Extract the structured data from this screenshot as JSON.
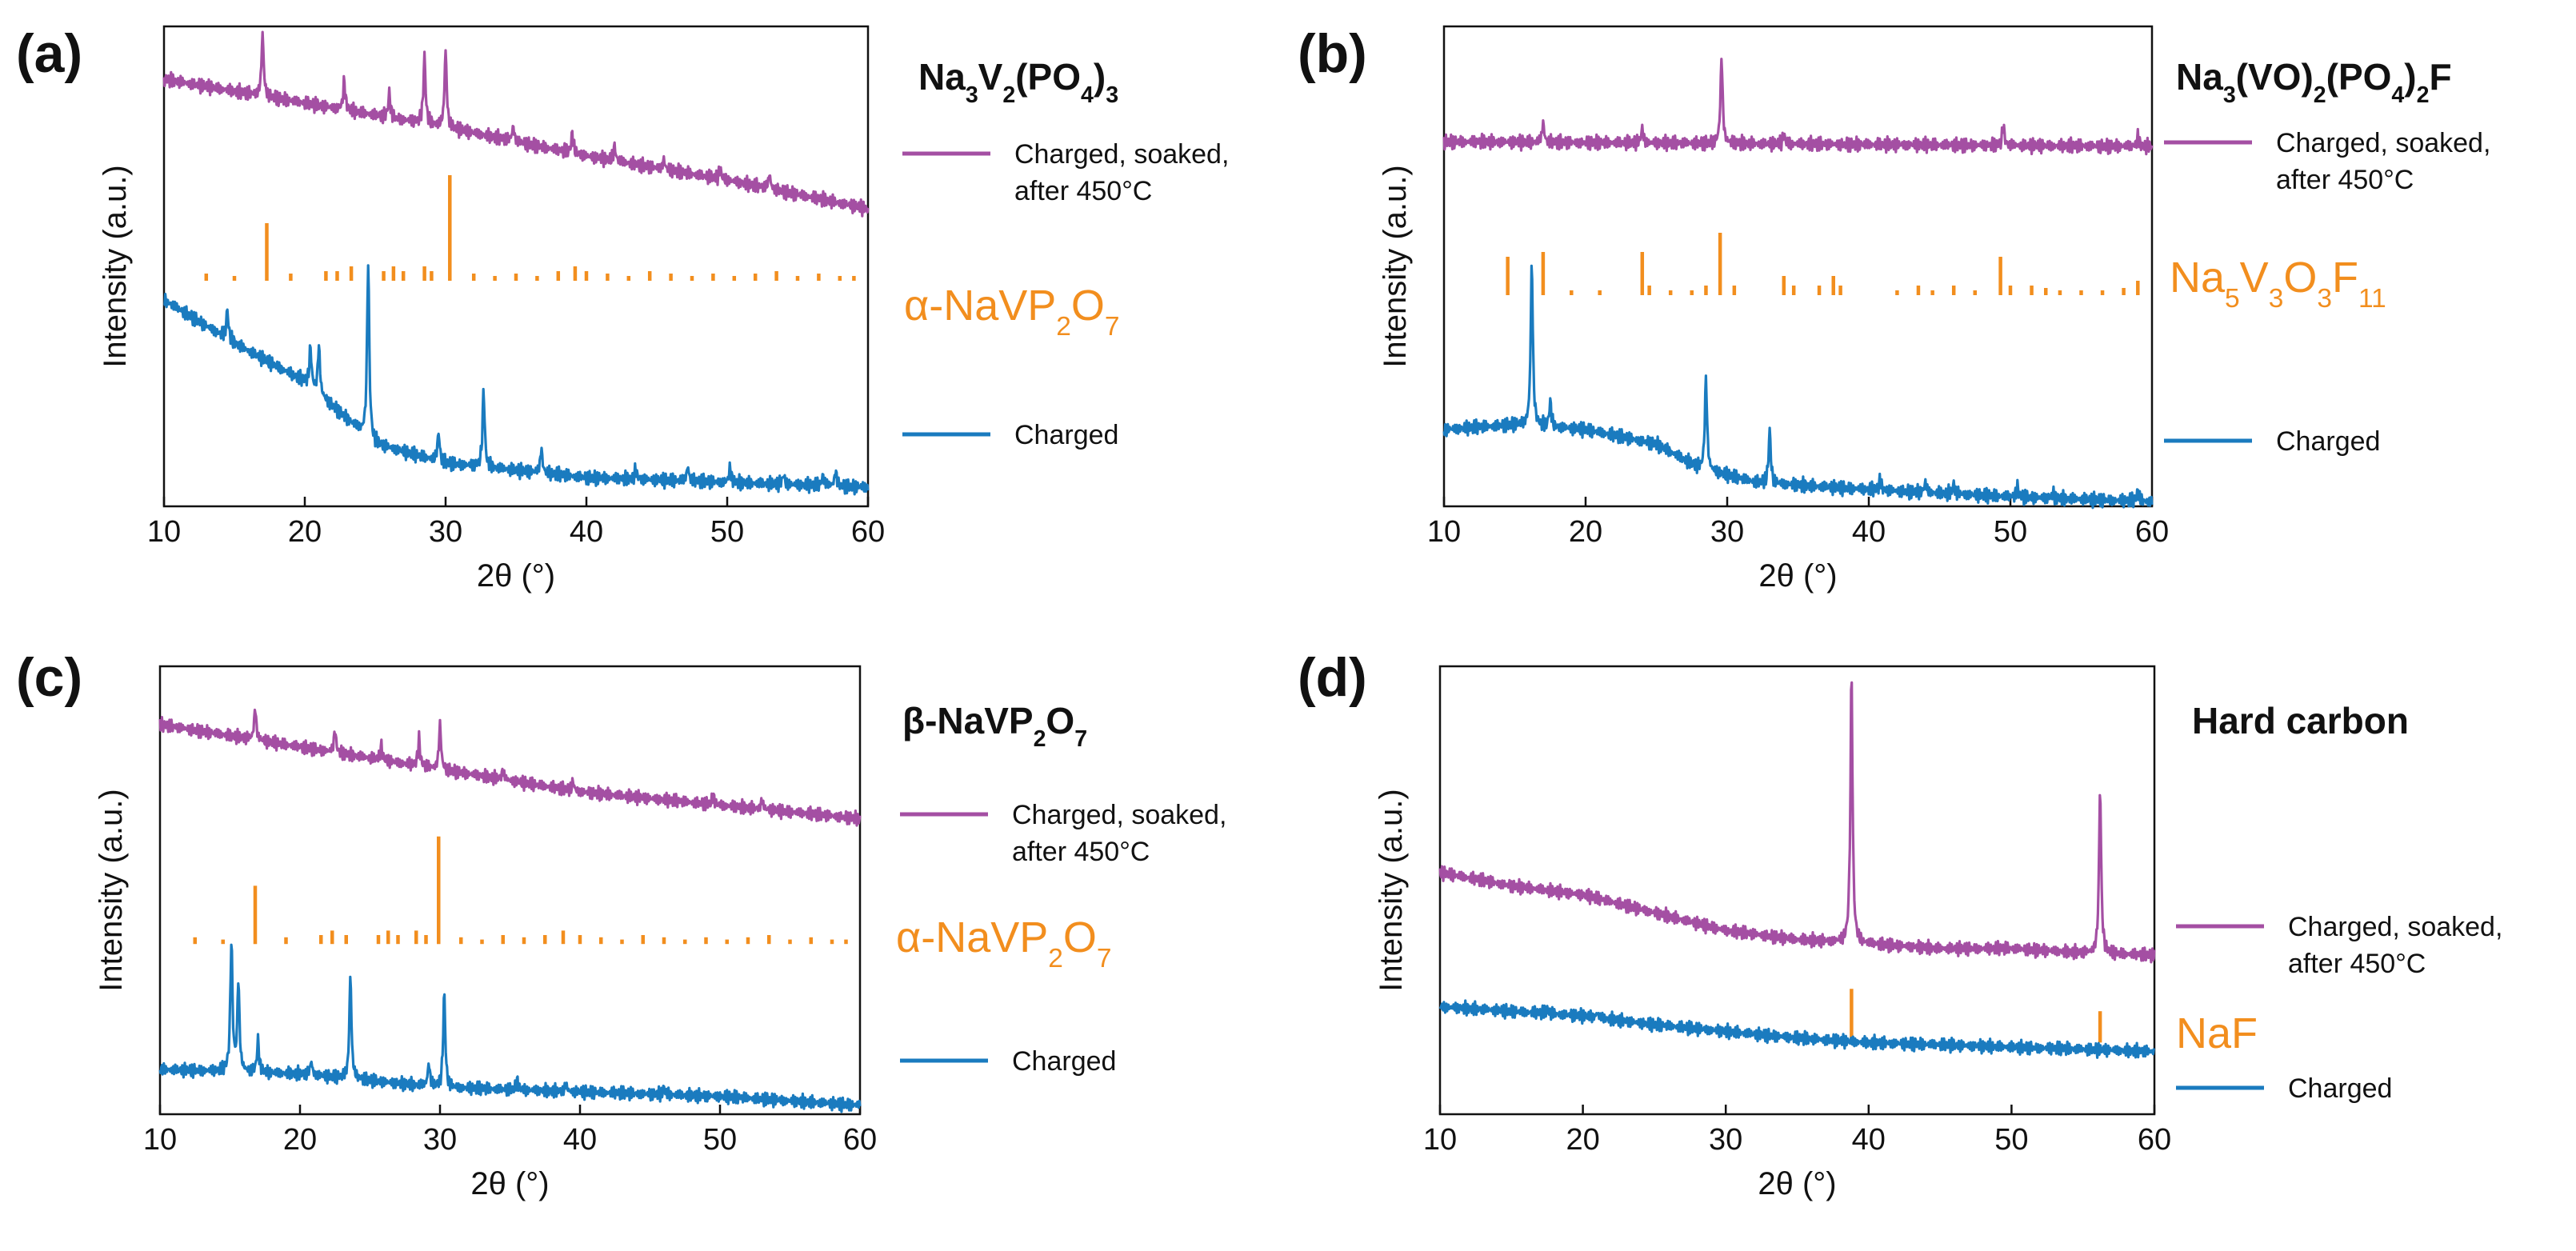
{
  "colors": {
    "soaked": "#a44fa3",
    "reference": "#f28e1e",
    "charged": "#1a7bbf",
    "axis": "#111111"
  },
  "chart_data": [
    {
      "type": "line",
      "panel_label": "(a)",
      "material_title": {
        "pre": "Na",
        "s1": "3",
        "m1": "V",
        "s2": "2",
        "m2": "(PO",
        "s3": "4",
        "m3": ")",
        "s4": "3"
      },
      "xlabel": "2θ (°)",
      "ylabel": "Intensity (a.u.)",
      "xlim": [
        10,
        60
      ],
      "xticks": [
        "10",
        "20",
        "30",
        "40",
        "50",
        "60"
      ],
      "series": [
        {
          "name": "Charged, soaked, after 450°C",
          "legend": [
            "Charged, soaked,",
            "after 450°C"
          ],
          "baseline": [
            [
              10,
              0.89
            ],
            [
              20,
              0.84
            ],
            [
              30,
              0.79
            ],
            [
              40,
              0.73
            ],
            [
              50,
              0.68
            ],
            [
              60,
              0.62
            ]
          ],
          "peaks": [
            [
              17.0,
              0.13
            ],
            [
              22.8,
              0.06
            ],
            [
              26.0,
              0.05
            ],
            [
              28.5,
              0.14
            ],
            [
              30.0,
              0.16
            ],
            [
              34.8,
              0.03
            ],
            [
              39.0,
              0.04
            ],
            [
              42.0,
              0.03
            ],
            [
              45.5,
              0.02
            ],
            [
              49.5,
              0.02
            ],
            [
              53.0,
              0.03
            ]
          ]
        },
        {
          "name": "Charged",
          "legend": [
            "Charged"
          ],
          "baseline": [
            [
              10,
              0.43
            ],
            [
              15,
              0.34
            ],
            [
              20,
              0.26
            ],
            [
              25,
              0.13
            ],
            [
              30,
              0.09
            ],
            [
              40,
              0.06
            ],
            [
              50,
              0.05
            ],
            [
              60,
              0.04
            ]
          ],
          "peaks": [
            [
              14.5,
              0.06
            ],
            [
              20.4,
              0.08
            ],
            [
              21.0,
              0.1
            ],
            [
              24.5,
              0.37
            ],
            [
              29.5,
              0.06
            ],
            [
              32.7,
              0.16
            ],
            [
              36.8,
              0.05
            ],
            [
              43.5,
              0.02
            ],
            [
              47.2,
              0.03
            ],
            [
              50.2,
              0.03
            ],
            [
              54.0,
              0.02
            ],
            [
              56.8,
              0.02
            ],
            [
              57.7,
              0.03
            ]
          ]
        }
      ],
      "reference": {
        "name": "α-NaVP2O7",
        "label": {
          "pre": "α-NaVP",
          "s1": "2",
          "m1": "O",
          "s2": "7"
        },
        "baseline": 0.47,
        "sticks": [
          [
            13.0,
            0.015
          ],
          [
            15.0,
            0.01
          ],
          [
            17.3,
            0.12
          ],
          [
            19.0,
            0.015
          ],
          [
            21.5,
            0.02
          ],
          [
            22.3,
            0.02
          ],
          [
            23.3,
            0.03
          ],
          [
            25.6,
            0.02
          ],
          [
            26.3,
            0.03
          ],
          [
            27.0,
            0.02
          ],
          [
            28.5,
            0.03
          ],
          [
            29.0,
            0.02
          ],
          [
            30.3,
            0.22
          ],
          [
            32.0,
            0.015
          ],
          [
            33.5,
            0.01
          ],
          [
            35.0,
            0.015
          ],
          [
            36.5,
            0.01
          ],
          [
            38.0,
            0.02
          ],
          [
            39.2,
            0.03
          ],
          [
            40.0,
            0.02
          ],
          [
            41.5,
            0.015
          ],
          [
            43.0,
            0.01
          ],
          [
            44.5,
            0.02
          ],
          [
            46.0,
            0.015
          ],
          [
            47.5,
            0.01
          ],
          [
            49.0,
            0.015
          ],
          [
            50.5,
            0.01
          ],
          [
            52.0,
            0.015
          ],
          [
            53.5,
            0.02
          ],
          [
            55.0,
            0.01
          ],
          [
            56.5,
            0.015
          ],
          [
            58.0,
            0.01
          ],
          [
            59.0,
            0.01
          ]
        ]
      }
    },
    {
      "type": "line",
      "panel_label": "(b)",
      "material_title": {
        "pre": "Na",
        "s1": "3",
        "m1": "(VO)",
        "s2": "2",
        "m2": "(PO",
        "s3": "4",
        "m3": ")",
        "s4": "2",
        "m4": "F"
      },
      "xlabel": "2θ (°)",
      "ylabel": "Intensity (a.u.)",
      "xlim": [
        10,
        60
      ],
      "xticks": [
        "10",
        "20",
        "30",
        "40",
        "50",
        "60"
      ],
      "series": [
        {
          "name": "Charged, soaked, after 450°C",
          "legend": [
            "Charged, soaked,",
            "after 450°C"
          ],
          "baseline": [
            [
              10,
              0.76
            ],
            [
              60,
              0.75
            ]
          ],
          "peaks": [
            [
              17.0,
              0.04
            ],
            [
              24.0,
              0.03
            ],
            [
              29.6,
              0.18
            ],
            [
              34.0,
              0.02
            ],
            [
              49.5,
              0.04
            ],
            [
              59.0,
              0.02
            ]
          ]
        },
        {
          "name": "Charged",
          "legend": [
            "Charged"
          ],
          "baseline": [
            [
              10,
              0.16
            ],
            [
              15,
              0.17
            ],
            [
              20,
              0.16
            ],
            [
              25,
              0.13
            ],
            [
              28,
              0.08
            ],
            [
              32,
              0.05
            ],
            [
              40,
              0.035
            ],
            [
              50,
              0.02
            ],
            [
              60,
              0.01
            ]
          ],
          "peaks": [
            [
              16.2,
              0.34
            ],
            [
              17.5,
              0.05
            ],
            [
              28.5,
              0.19
            ],
            [
              33.0,
              0.11
            ],
            [
              40.8,
              0.02
            ],
            [
              44.0,
              0.02
            ],
            [
              46.0,
              0.02
            ],
            [
              50.5,
              0.02
            ],
            [
              53.0,
              0.01
            ],
            [
              59.0,
              0.02
            ]
          ]
        }
      ],
      "reference": {
        "name": "Na5V3O3F11",
        "label": {
          "pre": "Na",
          "s1": "5",
          "m1": "V",
          "s2": "3",
          "m2": "O",
          "s3": "3",
          "m3": "F",
          "s4": "11"
        },
        "baseline": 0.44,
        "sticks": [
          [
            14.5,
            0.08
          ],
          [
            17.0,
            0.09
          ],
          [
            19.0,
            0.01
          ],
          [
            21.0,
            0.01
          ],
          [
            24.0,
            0.09
          ],
          [
            24.5,
            0.02
          ],
          [
            26.0,
            0.01
          ],
          [
            27.5,
            0.01
          ],
          [
            28.5,
            0.02
          ],
          [
            29.5,
            0.13
          ],
          [
            30.5,
            0.02
          ],
          [
            34.0,
            0.04
          ],
          [
            34.7,
            0.02
          ],
          [
            36.5,
            0.02
          ],
          [
            37.5,
            0.04
          ],
          [
            38.0,
            0.02
          ],
          [
            42.0,
            0.01
          ],
          [
            43.5,
            0.02
          ],
          [
            44.5,
            0.01
          ],
          [
            46.0,
            0.02
          ],
          [
            47.5,
            0.01
          ],
          [
            49.3,
            0.08
          ],
          [
            50.0,
            0.02
          ],
          [
            51.5,
            0.02
          ],
          [
            52.5,
            0.015
          ],
          [
            53.5,
            0.01
          ],
          [
            55.0,
            0.01
          ],
          [
            56.5,
            0.01
          ],
          [
            58.0,
            0.015
          ],
          [
            59.0,
            0.03
          ]
        ]
      }
    },
    {
      "type": "line",
      "panel_label": "(c)",
      "material_title": {
        "pre": "β-NaVP",
        "s1": "2",
        "m1": "O",
        "s2": "7"
      },
      "xlabel": "2θ (°)",
      "ylabel": "Intensity (a.u.)",
      "xlim": [
        10,
        60
      ],
      "xticks": [
        "10",
        "20",
        "30",
        "40",
        "50",
        "60"
      ],
      "series": [
        {
          "name": "Charged, soaked, after 450°C",
          "legend": [
            "Charged, soaked,",
            "after 450°C"
          ],
          "baseline": [
            [
              10,
              0.87
            ],
            [
              20,
              0.82
            ],
            [
              30,
              0.77
            ],
            [
              40,
              0.72
            ],
            [
              50,
              0.69
            ],
            [
              60,
              0.66
            ]
          ],
          "peaks": [
            [
              16.8,
              0.07
            ],
            [
              22.5,
              0.05
            ],
            [
              25.8,
              0.03
            ],
            [
              28.5,
              0.06
            ],
            [
              30.0,
              0.1
            ],
            [
              34.5,
              0.02
            ],
            [
              39.5,
              0.02
            ],
            [
              49.5,
              0.02
            ],
            [
              53.0,
              0.02
            ]
          ]
        },
        {
          "name": "Charged",
          "legend": [
            "Charged"
          ],
          "baseline": [
            [
              10,
              0.1
            ],
            [
              20,
              0.09
            ],
            [
              30,
              0.06
            ],
            [
              40,
              0.05
            ],
            [
              50,
              0.04
            ],
            [
              60,
              0.02
            ]
          ],
          "peaks": [
            [
              15.1,
              0.29
            ],
            [
              15.6,
              0.2
            ],
            [
              17.0,
              0.07
            ],
            [
              20.8,
              0.03
            ],
            [
              23.6,
              0.23
            ],
            [
              29.2,
              0.05
            ],
            [
              30.3,
              0.21
            ],
            [
              35.5,
              0.02
            ],
            [
              39.0,
              0.015
            ],
            [
              46.0,
              0.015
            ]
          ]
        }
      ],
      "reference": {
        "name": "α-NaVP2O7",
        "label": {
          "pre": "α-NaVP",
          "s1": "2",
          "m1": "O",
          "s2": "7"
        },
        "baseline": 0.38,
        "sticks": [
          [
            12.5,
            0.015
          ],
          [
            14.5,
            0.01
          ],
          [
            16.8,
            0.13
          ],
          [
            19.0,
            0.015
          ],
          [
            21.5,
            0.02
          ],
          [
            22.3,
            0.03
          ],
          [
            23.3,
            0.02
          ],
          [
            25.6,
            0.02
          ],
          [
            26.3,
            0.03
          ],
          [
            27.0,
            0.02
          ],
          [
            28.3,
            0.03
          ],
          [
            29.0,
            0.02
          ],
          [
            29.9,
            0.24
          ],
          [
            31.5,
            0.015
          ],
          [
            33.0,
            0.01
          ],
          [
            34.5,
            0.02
          ],
          [
            36.0,
            0.015
          ],
          [
            37.5,
            0.02
          ],
          [
            38.8,
            0.03
          ],
          [
            40.0,
            0.02
          ],
          [
            41.5,
            0.015
          ],
          [
            43.0,
            0.01
          ],
          [
            44.5,
            0.02
          ],
          [
            46.0,
            0.015
          ],
          [
            47.5,
            0.01
          ],
          [
            49.0,
            0.015
          ],
          [
            50.5,
            0.01
          ],
          [
            52.0,
            0.015
          ],
          [
            53.5,
            0.02
          ],
          [
            55.0,
            0.01
          ],
          [
            56.5,
            0.015
          ],
          [
            58.0,
            0.01
          ],
          [
            59.0,
            0.01
          ]
        ]
      }
    },
    {
      "type": "line",
      "panel_label": "(d)",
      "material_title": {
        "pre": "Hard carbon"
      },
      "xlabel": "2θ (°)",
      "ylabel": "Intensity (a.u.)",
      "xlim": [
        10,
        60
      ],
      "xticks": [
        "10",
        "20",
        "30",
        "40",
        "50",
        "60"
      ],
      "series": [
        {
          "name": "Charged, soaked, after 450°C",
          "legend": [
            "Charged, soaked,",
            "after 450°C"
          ],
          "baseline": [
            [
              10,
              0.54
            ],
            [
              15,
              0.51
            ],
            [
              20,
              0.49
            ],
            [
              25,
              0.45
            ],
            [
              30,
              0.41
            ],
            [
              35,
              0.39
            ],
            [
              40,
              0.38
            ],
            [
              45,
              0.37
            ],
            [
              50,
              0.37
            ],
            [
              55,
              0.36
            ],
            [
              60,
              0.355
            ]
          ],
          "peaks": [
            [
              38.8,
              0.6
            ],
            [
              56.2,
              0.37
            ]
          ]
        },
        {
          "name": "Charged",
          "legend": [
            "Charged"
          ],
          "baseline": [
            [
              10,
              0.24
            ],
            [
              15,
              0.23
            ],
            [
              20,
              0.22
            ],
            [
              25,
              0.2
            ],
            [
              30,
              0.185
            ],
            [
              35,
              0.17
            ],
            [
              40,
              0.16
            ],
            [
              50,
              0.15
            ],
            [
              60,
              0.14
            ]
          ],
          "peaks": [
            [
              17.5,
              0.01
            ],
            [
              21.0,
              0.01
            ]
          ]
        }
      ],
      "reference": {
        "name": "NaF",
        "label": {
          "pre": "NaF"
        },
        "baseline": 0.16,
        "sticks": [
          [
            38.8,
            0.12
          ],
          [
            56.2,
            0.07
          ]
        ]
      }
    }
  ]
}
